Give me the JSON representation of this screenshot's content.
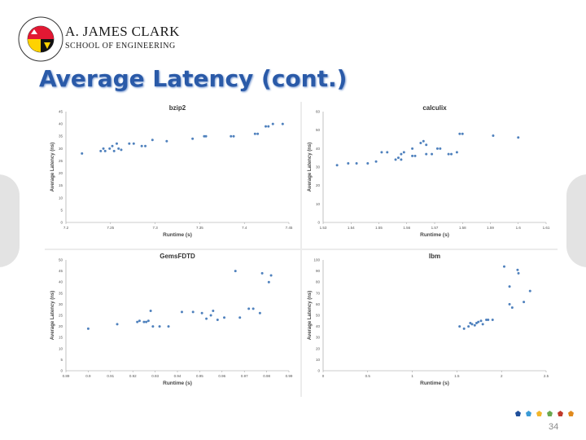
{
  "slide": {
    "title": "Average Latency (cont.)",
    "brand_line1": "A. JAMES CLARK",
    "brand_line2": "SCHOOL OF ENGINEERING",
    "page_number": "34",
    "logo_ring_text": "UNIVERSITY OF MARYLAND",
    "colors": {
      "title": "#2a5aa8",
      "marker": "#4f81bd",
      "dots": [
        "#1f4e9a",
        "#3b9bd6",
        "#f3b62b",
        "#6aa84f",
        "#c0392b",
        "#e08a1e"
      ]
    }
  },
  "chart_data": [
    {
      "type": "scatter",
      "title": "bzip2",
      "xlabel": "Runtime (s)",
      "ylabel": "Average Latency (ns)",
      "xlim": [
        7.2,
        7.45
      ],
      "ylim": [
        0,
        45
      ],
      "xticks": [
        "7.2",
        "7.25",
        "7.3",
        "7.35",
        "7.4",
        "7.45"
      ],
      "yticks": [
        "0",
        "5",
        "10",
        "15",
        "20",
        "25",
        "30",
        "35",
        "40",
        "45"
      ],
      "points": [
        [
          7.218,
          28
        ],
        [
          7.239,
          29
        ],
        [
          7.242,
          30
        ],
        [
          7.244,
          29
        ],
        [
          7.249,
          30
        ],
        [
          7.252,
          31
        ],
        [
          7.254,
          29
        ],
        [
          7.257,
          32
        ],
        [
          7.259,
          30
        ],
        [
          7.262,
          29.5
        ],
        [
          7.271,
          32
        ],
        [
          7.276,
          32
        ],
        [
          7.285,
          31
        ],
        [
          7.289,
          31
        ],
        [
          7.297,
          33.5
        ],
        [
          7.313,
          33
        ],
        [
          7.342,
          34
        ],
        [
          7.355,
          35
        ],
        [
          7.357,
          35
        ],
        [
          7.385,
          35
        ],
        [
          7.388,
          35
        ],
        [
          7.412,
          36
        ],
        [
          7.415,
          36
        ],
        [
          7.424,
          39
        ],
        [
          7.427,
          39
        ],
        [
          7.432,
          40
        ],
        [
          7.443,
          40
        ]
      ]
    },
    {
      "type": "scatter",
      "title": "calculix",
      "xlabel": "Runtime (s)",
      "ylabel": "Average Latency (ns)",
      "xlim": [
        1.53,
        1.61
      ],
      "ylim": [
        0,
        60
      ],
      "xticks": [
        "1.53",
        "1.54",
        "1.55",
        "1.56",
        "1.57",
        "1.58",
        "1.59",
        "1.6",
        "1.61"
      ],
      "yticks": [
        "0",
        "10",
        "20",
        "30",
        "40",
        "50",
        "60"
      ],
      "points": [
        [
          1.535,
          31
        ],
        [
          1.539,
          32
        ],
        [
          1.542,
          32
        ],
        [
          1.546,
          32
        ],
        [
          1.549,
          33
        ],
        [
          1.551,
          38
        ],
        [
          1.553,
          38
        ],
        [
          1.556,
          34
        ],
        [
          1.557,
          35
        ],
        [
          1.558,
          37
        ],
        [
          1.558,
          34
        ],
        [
          1.559,
          38
        ],
        [
          1.562,
          36
        ],
        [
          1.562,
          40
        ],
        [
          1.563,
          36
        ],
        [
          1.565,
          43
        ],
        [
          1.566,
          44
        ],
        [
          1.567,
          37
        ],
        [
          1.567,
          42
        ],
        [
          1.569,
          37
        ],
        [
          1.571,
          40
        ],
        [
          1.572,
          40
        ],
        [
          1.575,
          37
        ],
        [
          1.576,
          37
        ],
        [
          1.578,
          38
        ],
        [
          1.579,
          48
        ],
        [
          1.58,
          48
        ],
        [
          1.591,
          47
        ],
        [
          1.6,
          46
        ]
      ]
    },
    {
      "type": "scatter",
      "title": "GemsFDTD",
      "xlabel": "Runtime (s)",
      "ylabel": "Average Latency (ns)",
      "xlim": [
        0.89,
        0.99
      ],
      "ylim": [
        0,
        50
      ],
      "xticks": [
        "0.89",
        "0.9",
        "0.91",
        "0.92",
        "0.93",
        "0.94",
        "0.95",
        "0.96",
        "0.97",
        "0.98",
        "0.99"
      ],
      "yticks": [
        "0",
        "5",
        "10",
        "15",
        "20",
        "25",
        "30",
        "35",
        "40",
        "45",
        "50"
      ],
      "points": [
        [
          0.9,
          19
        ],
        [
          0.913,
          21
        ],
        [
          0.922,
          22
        ],
        [
          0.923,
          22.5
        ],
        [
          0.925,
          22
        ],
        [
          0.926,
          22
        ],
        [
          0.927,
          22.5
        ],
        [
          0.928,
          27
        ],
        [
          0.929,
          20
        ],
        [
          0.932,
          20
        ],
        [
          0.936,
          20
        ],
        [
          0.942,
          26.5
        ],
        [
          0.947,
          26.5
        ],
        [
          0.951,
          26
        ],
        [
          0.953,
          23.5
        ],
        [
          0.955,
          25
        ],
        [
          0.956,
          27
        ],
        [
          0.958,
          23
        ],
        [
          0.961,
          24
        ],
        [
          0.966,
          45
        ],
        [
          0.968,
          24
        ],
        [
          0.972,
          28
        ],
        [
          0.974,
          28
        ],
        [
          0.977,
          26
        ],
        [
          0.978,
          44
        ],
        [
          0.981,
          40
        ],
        [
          0.982,
          43
        ]
      ]
    },
    {
      "type": "scatter",
      "title": "lbm",
      "xlabel": "Runtime (s)",
      "ylabel": "Average Latency (ns)",
      "xlim": [
        0,
        2.5
      ],
      "ylim": [
        0,
        100
      ],
      "xticks": [
        "0",
        "0.5",
        "1",
        "1.5",
        "2",
        "2.5"
      ],
      "yticks": [
        "0",
        "10",
        "20",
        "30",
        "40",
        "50",
        "60",
        "70",
        "80",
        "90",
        "100"
      ],
      "points": [
        [
          1.53,
          40
        ],
        [
          1.58,
          38
        ],
        [
          1.63,
          40
        ],
        [
          1.65,
          43
        ],
        [
          1.67,
          42
        ],
        [
          1.7,
          41
        ],
        [
          1.72,
          43
        ],
        [
          1.74,
          44
        ],
        [
          1.77,
          45
        ],
        [
          1.79,
          42
        ],
        [
          1.83,
          46
        ],
        [
          1.85,
          46
        ],
        [
          1.9,
          46
        ],
        [
          2.03,
          94
        ],
        [
          2.09,
          76
        ],
        [
          2.09,
          60
        ],
        [
          2.12,
          57
        ],
        [
          2.18,
          91
        ],
        [
          2.19,
          88
        ],
        [
          2.25,
          62
        ],
        [
          2.32,
          72
        ]
      ]
    }
  ]
}
